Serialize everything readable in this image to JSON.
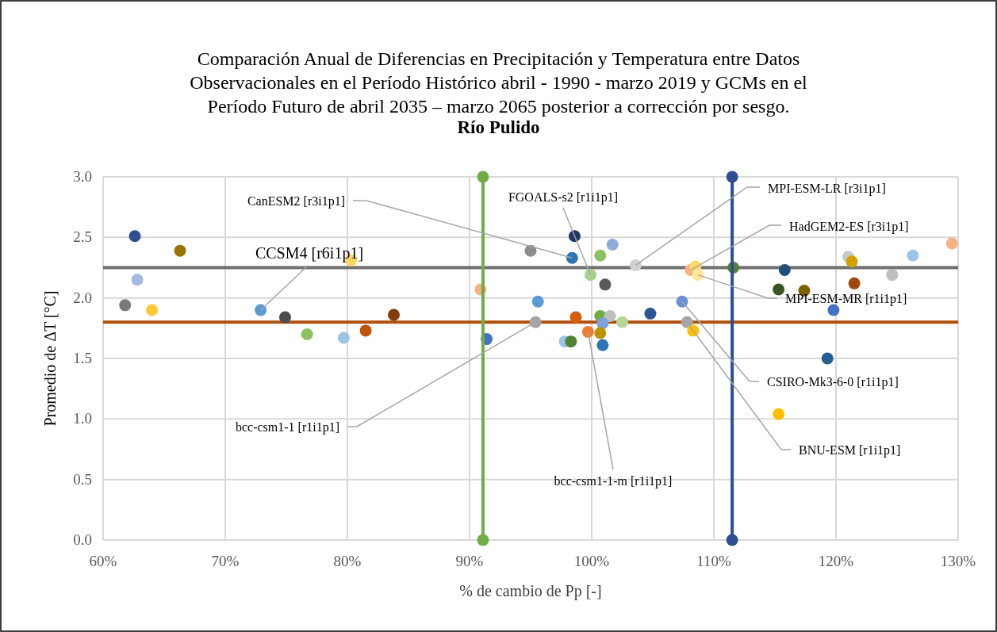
{
  "chart_data": {
    "type": "scatter",
    "title": "Comparación Anual de Diferencias en Precipitación y Temperatura entre Datos Observacionales en el Período Histórico abril - 1990 - marzo 2019 y GCMs en el Período Futuro de abril 2035 – marzo 2065 posterior a corrección por sesgo.",
    "subtitle": "Río Pulido",
    "xlabel": "% de cambio de Pp [-]",
    "ylabel": "Promedio de ΔT [°C]",
    "xlim": [
      60,
      130
    ],
    "xticks": [
      {
        "value": 60,
        "label": "60%"
      },
      {
        "value": 70,
        "label": "70%"
      },
      {
        "value": 80,
        "label": "80%"
      },
      {
        "value": 90,
        "label": "90%"
      },
      {
        "value": 100,
        "label": "100%"
      },
      {
        "value": 110,
        "label": "110%"
      },
      {
        "value": 120,
        "label": "120%"
      },
      {
        "value": 130,
        "label": "130%"
      }
    ],
    "ylim": [
      0,
      3
    ],
    "yticks": [
      {
        "value": 0,
        "label": "0.0"
      },
      0.5,
      {
        "value": 1,
        "label": "1.0"
      },
      1.5,
      {
        "value": 2,
        "label": "2.0"
      },
      2.5,
      {
        "value": 3,
        "label": "3.0"
      }
    ],
    "grid": true,
    "marker": "circle",
    "series": [
      {
        "x": [
          62.6,
          66.3,
          62.8,
          61.8,
          64.0,
          80.3,
          72.9,
          74.9,
          76.7,
          79.7,
          81.5,
          83.8,
          98.6,
          101.7,
          95.0,
          98.4,
          100.7,
          103.6,
          99.9,
          101.1,
          90.9,
          95.6,
          104.8,
          107.4,
          98.7,
          100.7,
          101.5,
          102.5,
          95.4,
          100.9,
          107.8,
          99.7,
          100.7,
          91.4,
          97.8,
          98.3,
          100.9,
          108.3,
          108.1,
          108.5,
          108.7,
          111.6,
          115.8,
          115.3,
          117.4,
          121.0,
          121.3,
          121.5,
          124.6,
          126.3,
          129.5,
          119.8,
          119.3,
          115.3
        ],
        "values": [
          2.51,
          2.39,
          2.15,
          1.94,
          1.9,
          2.31,
          1.9,
          1.84,
          1.7,
          1.67,
          1.73,
          1.86,
          2.51,
          2.44,
          2.39,
          2.33,
          2.35,
          2.27,
          2.19,
          2.11,
          2.07,
          1.97,
          1.87,
          1.97,
          1.84,
          1.85,
          1.85,
          1.8,
          1.8,
          1.79,
          1.8,
          1.72,
          1.71,
          1.66,
          1.64,
          1.64,
          1.61,
          1.73,
          2.23,
          2.26,
          2.19,
          2.25,
          2.23,
          2.07,
          2.06,
          2.34,
          2.3,
          2.12,
          2.19,
          2.35,
          2.45,
          1.9,
          1.5,
          1.04
        ],
        "colors": [
          "#2f4f8f",
          "#9a7400",
          "#a4b9e0",
          "#7a7a7a",
          "#ffc832",
          "#ffd966",
          "#5b9bd5",
          "#4d4d4d",
          "#8cc063",
          "#9dc3e6",
          "#c0540f",
          "#843c0c",
          "#203864",
          "#8faadc",
          "#8c8c8c",
          "#2e75b6",
          "#8cc063",
          "#d0d0d0",
          "#a9d18e",
          "#595959",
          "#f4b183",
          "#5b9bd5",
          "#2f5597",
          "#6d8fd4",
          "#d2600a",
          "#70ad47",
          "#bfbfbf",
          "#b5d89a",
          "#a5a5a5",
          "#7fa1dc",
          "#a5a5a5",
          "#ed7d31",
          "#bf9000",
          "#4472c4",
          "#9dc3e6",
          "#548235",
          "#2e75b6",
          "#ffc000",
          "#f4b183",
          "#ffd966",
          "#ffe699",
          "#548235",
          "#1f4e79",
          "#375623",
          "#7f6000",
          "#c9c9c9",
          "#d4a000",
          "#9e480e",
          "#bfbfbf",
          "#9dc3e6",
          "#f4b183",
          "#4472c4",
          "#255e91",
          "#ffc000"
        ]
      },
      {
        "type": "line",
        "x": [
          91.1,
          91.1
        ],
        "values": [
          3,
          0
        ],
        "color": "#70ad47"
      },
      {
        "type": "line",
        "x": [
          111.5,
          111.5
        ],
        "values": [
          3,
          0
        ],
        "color": "#2f4f8f"
      }
    ],
    "ref_lines": [
      {
        "axis": "y",
        "value": 2.25,
        "color": "#6f6f6f"
      },
      {
        "axis": "y",
        "value": 1.8,
        "color": "#b0500f"
      }
    ],
    "annotations": [
      {
        "text": "CanESM2 [r3i1p1]",
        "x": 98.4,
        "y": 2.33
      },
      {
        "text": "CCSM4 [r6i1p1]",
        "x": 72.9,
        "y": 1.9
      },
      {
        "text": "FGOALS-s2 [r1i1p1]",
        "x": 99.9,
        "y": 2.19
      },
      {
        "text": "MPI-ESM-LR [r3i1p1]",
        "x": 103.6,
        "y": 2.27
      },
      {
        "text": "HadGEM2-ES [r3i1p1]",
        "x": 108.1,
        "y": 2.23
      },
      {
        "text": "MPI-ESM-MR [r1i1p1]",
        "x": 108.7,
        "y": 2.19
      },
      {
        "text": "CSIRO-Mk3-6-0 [r1i1p1]",
        "x": 107.4,
        "y": 1.97
      },
      {
        "text": "BNU-ESM [r1i1p1]",
        "x": 107.8,
        "y": 1.8
      },
      {
        "text": "bcc-csm1-1 [r1i1p1]",
        "x": 95.4,
        "y": 1.8
      },
      {
        "text": "bcc-csm1-1-m [r1i1p1]",
        "x": 99.7,
        "y": 1.72
      }
    ]
  }
}
